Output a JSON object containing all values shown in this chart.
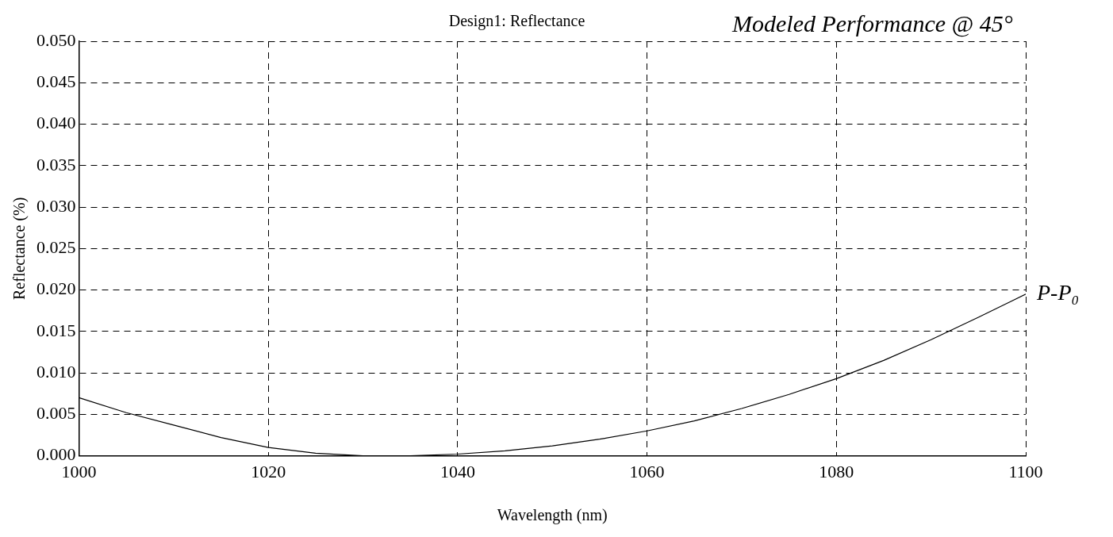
{
  "chart_data": {
    "type": "line",
    "title": "Design1: Reflectance",
    "xlabel": "Wavelength (nm)",
    "ylabel": "Reflectance (%)",
    "x": [
      1000,
      1005,
      1010,
      1015,
      1020,
      1025,
      1030,
      1035,
      1040,
      1045,
      1050,
      1055,
      1060,
      1065,
      1070,
      1075,
      1080,
      1085,
      1090,
      1095,
      1100
    ],
    "series": [
      {
        "color": "#000000",
        "values": [
          0.007,
          0.0052,
          0.0037,
          0.0022,
          0.001,
          0.0003,
          0.0,
          0.0,
          0.0002,
          0.0006,
          0.0012,
          0.002,
          0.003,
          0.0042,
          0.0057,
          0.0074,
          0.0093,
          0.0115,
          0.014,
          0.0167,
          0.0195
        ]
      }
    ],
    "xlim": [
      1000,
      1100
    ],
    "xticks": [
      1000,
      1020,
      1040,
      1060,
      1080,
      1100
    ],
    "ylim": [
      0,
      0.05
    ],
    "yticks": [
      {
        "value": 0,
        "label": "0.000"
      },
      {
        "value": 0.005,
        "label": "0.005"
      },
      {
        "value": 0.01,
        "label": "0.010"
      },
      {
        "value": 0.015,
        "label": "0.015"
      },
      {
        "value": 0.02,
        "label": "0.020"
      },
      {
        "value": 0.025,
        "label": "0.025"
      },
      {
        "value": 0.03,
        "label": "0.030"
      },
      {
        "value": 0.035,
        "label": "0.035"
      },
      {
        "value": 0.04,
        "label": "0.040"
      },
      {
        "value": 0.045,
        "label": "0.045"
      },
      {
        "value": 0.05,
        "label": "0.050"
      }
    ],
    "grid": true,
    "line_style": "solid",
    "marker": "none",
    "legend": false,
    "annotations": [
      "Modeled Performance @ 45°",
      {
        "text": "P-P₀",
        "x": 1100,
        "y": 0.0195
      }
    ]
  }
}
